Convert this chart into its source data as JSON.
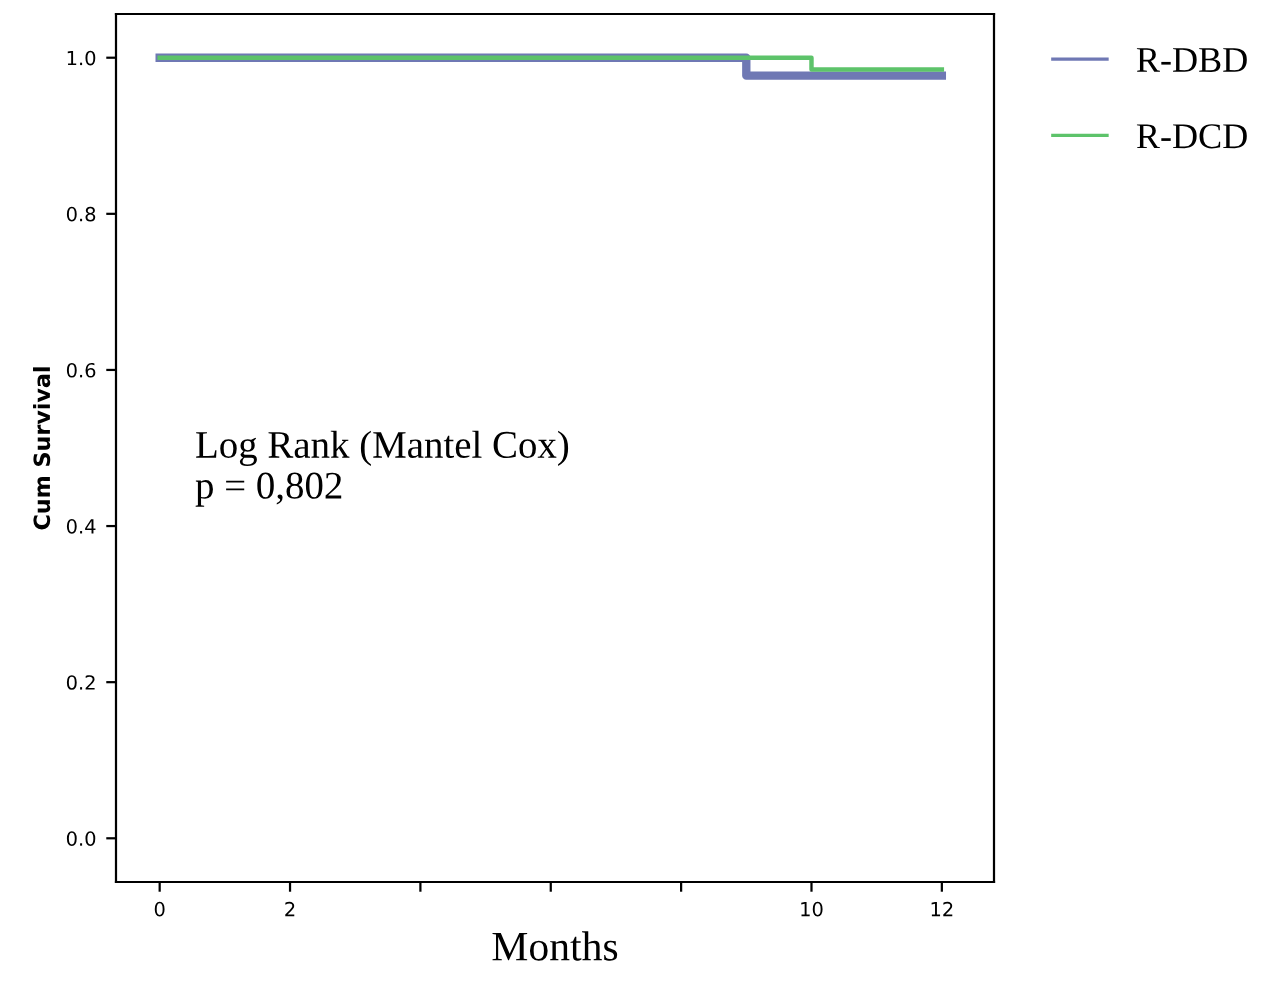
{
  "chart_data": {
    "type": "step",
    "xlabel": "Months",
    "ylabel": "Cum Survival",
    "series": [
      {
        "name": "R-DBD",
        "color": "#6f78b4",
        "x": [
          0,
          9,
          9,
          12
        ],
        "values": [
          1.0,
          1.0,
          0.977,
          0.977
        ]
      },
      {
        "name": "R-DCD",
        "color": "#5dc36a",
        "x": [
          0,
          10,
          10,
          12
        ],
        "values": [
          1.0,
          1.0,
          0.985,
          0.985
        ]
      }
    ],
    "xlim": [
      -0.67,
      12.8
    ],
    "ylim": [
      -0.056,
      1.056
    ],
    "xticks": [
      0,
      2,
      {
        "value": 4,
        "label": null
      },
      {
        "value": 6,
        "label": null
      },
      {
        "value": 8,
        "label": null
      },
      10,
      12
    ],
    "yticks": [
      {
        "value": 0,
        "label": "0.0"
      },
      {
        "value": 0.2,
        "label": "0.2"
      },
      {
        "value": 0.4,
        "label": "0.4"
      },
      {
        "value": 0.6,
        "label": "0.6"
      },
      {
        "value": 0.8,
        "label": "0.8"
      },
      {
        "value": 1,
        "label": "1.0"
      }
    ],
    "annotations": [
      "Log Rank (Mantel Cox)\np = 0,802"
    ],
    "legend": "top right",
    "grid": false
  }
}
